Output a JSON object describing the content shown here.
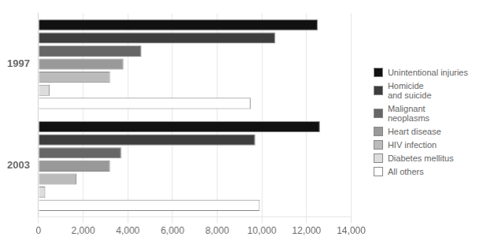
{
  "chart_data": {
    "type": "bar",
    "orientation": "horizontal",
    "categories": [
      "1997",
      "2003"
    ],
    "series": [
      {
        "name": "Unintentional injuries",
        "color": "#111111",
        "values": [
          12500,
          12600
        ]
      },
      {
        "name": "Homicide\nand suicide",
        "color": "#3d3d3d",
        "values": [
          10600,
          9700
        ]
      },
      {
        "name": "Malignant\nneoplasms",
        "color": "#666666",
        "values": [
          4600,
          3700
        ]
      },
      {
        "name": "Heart disease",
        "color": "#999999",
        "values": [
          3800,
          3200
        ]
      },
      {
        "name": "HIV infection",
        "color": "#bbbbbb",
        "values": [
          3200,
          1700
        ]
      },
      {
        "name": "Diabetes mellitus",
        "color": "#dddddd",
        "values": [
          500,
          300
        ]
      },
      {
        "name": "All others",
        "color": "#ffffff",
        "values": [
          9500,
          9900
        ]
      }
    ],
    "xlim": [
      0,
      14000
    ],
    "xticks": [
      0,
      {
        "value": 2000,
        "label": "2,000"
      },
      {
        "value": 4000,
        "label": "4,000"
      },
      {
        "value": 6000,
        "label": "6,000"
      },
      {
        "value": 8000,
        "label": "8,000"
      },
      {
        "value": 10000,
        "label": "10,000"
      },
      {
        "value": 12000,
        "label": "12,000"
      },
      {
        "value": 14000,
        "label": "14,000"
      }
    ],
    "grid": true,
    "legend": "right"
  }
}
